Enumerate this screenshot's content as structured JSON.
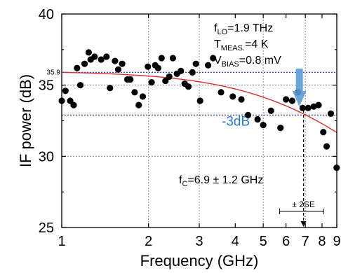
{
  "chart_data": {
    "type": "scatter",
    "xlabel": "Frequency (GHz)",
    "ylabel": "IF power (dB)",
    "x_scale": "log",
    "xlim": [
      1,
      9
    ],
    "ylim": [
      25,
      40
    ],
    "grid": true,
    "x_ticks": [
      {
        "value": 1,
        "label": "1"
      },
      {
        "value": 2,
        "label": "2"
      },
      {
        "value": 3,
        "label": "3"
      },
      {
        "value": 4,
        "label": "4"
      },
      {
        "value": 5,
        "label": "5"
      },
      {
        "value": 6,
        "label": "6"
      },
      {
        "value": 7,
        "label": "7"
      },
      {
        "value": 8,
        "label": "8"
      },
      {
        "value": 9,
        "label": "9"
      }
    ],
    "x_gridlines": [
      2,
      3,
      5,
      7
    ],
    "y_ticks": [
      {
        "value": 25,
        "label": "25"
      },
      {
        "value": 30,
        "label": "30"
      },
      {
        "value": 35,
        "label": "35"
      },
      {
        "value": 40,
        "label": "40"
      }
    ],
    "y_gridlines": [
      30,
      35
    ],
    "series": [
      {
        "kind": "scatter",
        "color": "#000000",
        "points": [
          [
            1.0,
            33.9
          ],
          [
            1.03,
            34.6
          ],
          [
            1.07,
            33.9
          ],
          [
            1.1,
            33.6
          ],
          [
            1.13,
            36.2
          ],
          [
            1.16,
            35.0
          ],
          [
            1.2,
            36.5
          ],
          [
            1.24,
            37.3
          ],
          [
            1.26,
            36.8
          ],
          [
            1.3,
            37.0
          ],
          [
            1.37,
            36.8
          ],
          [
            1.43,
            37.0
          ],
          [
            1.47,
            34.8
          ],
          [
            1.53,
            36.7
          ],
          [
            1.57,
            36.1
          ],
          [
            1.62,
            36.5
          ],
          [
            1.69,
            35.4
          ],
          [
            1.73,
            35.4
          ],
          [
            1.79,
            34.5
          ],
          [
            1.85,
            33.6
          ],
          [
            1.91,
            34.2
          ],
          [
            1.99,
            36.3
          ],
          [
            2.05,
            35.2
          ],
          [
            2.11,
            36.4
          ],
          [
            2.16,
            36.2
          ],
          [
            2.22,
            36.9
          ],
          [
            2.29,
            35.3
          ],
          [
            2.36,
            35.6
          ],
          [
            2.43,
            36.9
          ],
          [
            2.51,
            35.8
          ],
          [
            2.59,
            36.0
          ],
          [
            2.67,
            35.1
          ],
          [
            2.75,
            34.9
          ],
          [
            2.84,
            35.9
          ],
          [
            2.92,
            36.5
          ],
          [
            3.02,
            33.9
          ],
          [
            3.22,
            36.4
          ],
          [
            3.35,
            36.9
          ],
          [
            3.57,
            34.5
          ],
          [
            3.92,
            34.2
          ],
          [
            4.2,
            34.0
          ],
          [
            4.43,
            32.9
          ],
          [
            4.78,
            32.6
          ],
          [
            5.0,
            32.2
          ],
          [
            5.32,
            33.2
          ],
          [
            5.74,
            32.0
          ],
          [
            6.0,
            34.0
          ],
          [
            6.3,
            33.9
          ],
          [
            6.6,
            34.5
          ],
          [
            6.85,
            33.4
          ],
          [
            7.16,
            33.4
          ],
          [
            7.49,
            33.5
          ],
          [
            7.78,
            33.6
          ],
          [
            8.08,
            31.7
          ],
          [
            8.3,
            30.7
          ],
          [
            8.58,
            33.0
          ],
          [
            8.99,
            29.2
          ]
        ]
      },
      {
        "kind": "line",
        "label": "fit",
        "color": "#d9302c",
        "f0": 1.0,
        "fc": 6.9,
        "y_max": 35.9
      }
    ],
    "reference_lines": [
      {
        "y": 35.9,
        "label": "35.9",
        "color": "#2d3ec6"
      },
      {
        "y": 32.9,
        "label": "-3dB",
        "label_color": "#2a7bc9",
        "color": "#2d3ec6"
      }
    ],
    "annotations": {
      "params": [
        {
          "base": "f",
          "sub": "LO",
          "rest": "=1.9 THz"
        },
        {
          "base": "T",
          "sub": "MEAS.",
          "rest": "=4 K"
        },
        {
          "base": "V",
          "sub": "BIAS",
          "rest": "=0.8 mV"
        }
      ],
      "fc_label": {
        "base": "f",
        "sub": "C",
        "rest": "=6.9",
        "pm": "±",
        "tail": "1.2 GHz"
      },
      "err_label": "± 2SE",
      "fc_value": 6.9,
      "fc_err_low": 5.7,
      "fc_err_high": 8.1,
      "arrow_color": "#5b9bd5"
    }
  }
}
